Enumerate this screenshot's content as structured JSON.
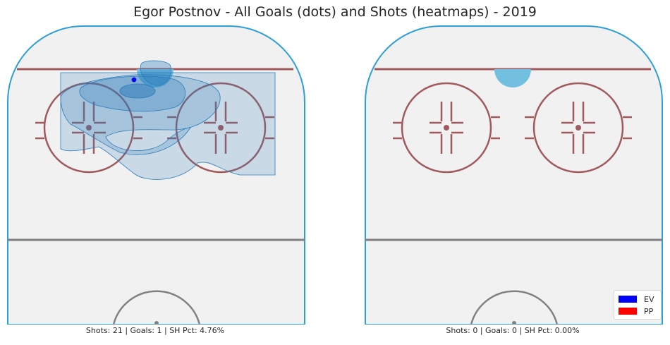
{
  "chart_data": {
    "type": "heatmap",
    "title": "Egor Postnov - All Goals (dots) and Shots (heatmaps) - 2019",
    "legend": {
      "placement": "bottom-right",
      "entries": [
        {
          "label": "EV",
          "color": "#0000ff"
        },
        {
          "label": "PP",
          "color": "#ff0000"
        }
      ]
    },
    "panels": [
      {
        "id": "left",
        "caption": "Shots: 21 | Goals: 1 | SH Pct: 4.76%",
        "shots": 21,
        "goals": 1,
        "sh_pct": "4.76%",
        "goal_dots": [
          {
            "strength": "EV"
          }
        ]
      },
      {
        "id": "right",
        "caption": "Shots: 0 | Goals: 0 | SH Pct: 0.00%",
        "shots": 0,
        "goals": 0,
        "sh_pct": "0.00%",
        "goal_dots": []
      }
    ],
    "colors": {
      "heat": "#2b7bba",
      "crease": "#73bfe0",
      "boards": "#2d9fd6",
      "red_line": "#a05a5e",
      "center_line": "#808080",
      "ice": "#f1f1f1"
    }
  }
}
